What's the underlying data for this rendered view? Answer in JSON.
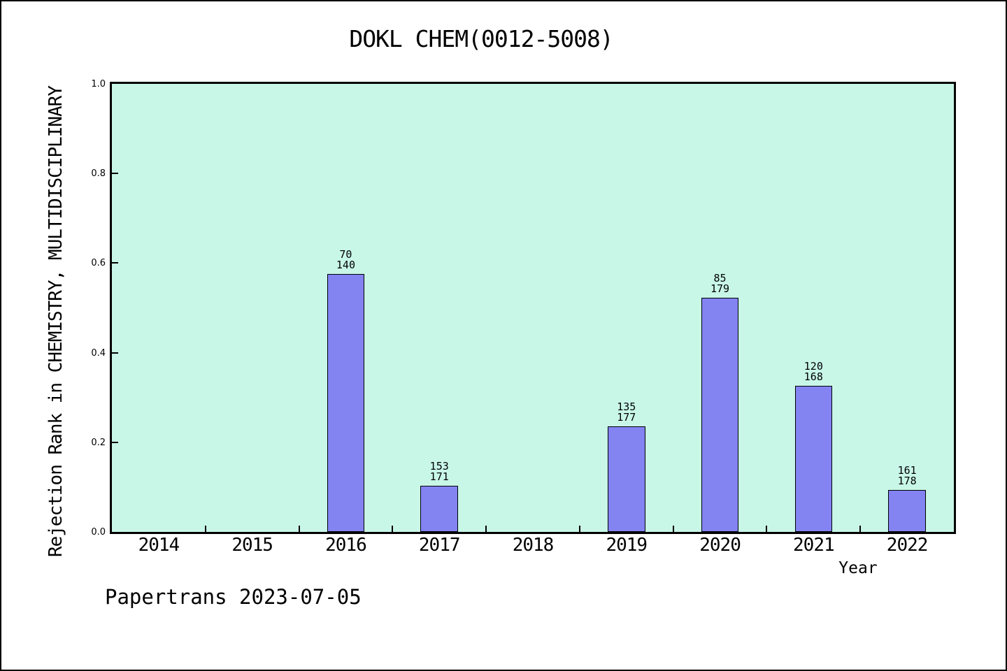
{
  "title": "DOKL CHEM(0012-5008)",
  "footer": "Papertrans 2023-07-05",
  "colors": {
    "plot_background": "#c8f7e8",
    "bar_fill": "#8383f2",
    "bar_border": "#000000",
    "frame": "#000000",
    "page_background": "#ffffff",
    "text": "#000000"
  },
  "chart_data": {
    "type": "bar",
    "title": "DOKL CHEM(0012-5008)",
    "xlabel": "Year",
    "ylabel": "Rejection Rank in CHEMISTRY, MULTIDISCIPLINARY",
    "categories": [
      "2014",
      "2015",
      "2016",
      "2017",
      "2018",
      "2019",
      "2020",
      "2021",
      "2022"
    ],
    "values": [
      null,
      null,
      0.575,
      0.103,
      null,
      0.236,
      0.523,
      0.326,
      0.094
    ],
    "bar_labels": [
      null,
      null,
      [
        "70",
        "140"
      ],
      [
        "153",
        "171"
      ],
      null,
      [
        "135",
        "177"
      ],
      [
        "85",
        "179"
      ],
      [
        "120",
        "168"
      ],
      [
        "161",
        "178"
      ]
    ],
    "yticks": [
      "0.0",
      "0.2",
      "0.4",
      "0.6",
      "0.8",
      "1.0"
    ],
    "ylim": [
      0,
      1
    ],
    "bar_width_fraction": 0.4,
    "grid": "off",
    "legend": "none",
    "annotation": "Papertrans 2023-07-05"
  }
}
